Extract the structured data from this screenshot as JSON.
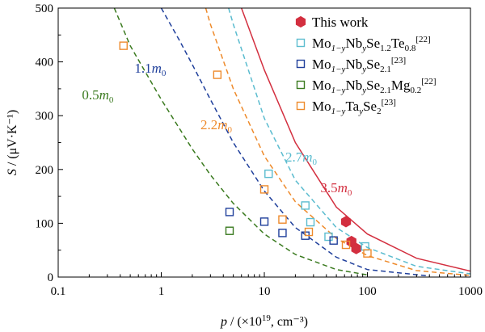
{
  "chart_data": {
    "type": "scatter",
    "xlabel": {
      "pre": "p",
      "mid": " / (×10",
      "sup": "19",
      "post": ", cm⁻³)"
    },
    "ylabel": {
      "pre": "S",
      "post": " / (μV·K⁻¹)"
    },
    "xscale": "log",
    "xlim": [
      0.1,
      1000
    ],
    "ylim": [
      0,
      500
    ],
    "xticks": [
      0.1,
      1,
      10,
      100,
      1000
    ],
    "xtick_labels": [
      "0.1",
      "1",
      "10",
      "100",
      "1000"
    ],
    "yticks": [
      0,
      100,
      200,
      300,
      400,
      500
    ],
    "ytick_labels": [
      "0",
      "100",
      "200",
      "300",
      "400",
      "500"
    ],
    "grid": false,
    "legend_position": "top-right",
    "series": [
      {
        "name": "This work",
        "legend": [
          {
            "t": "This work"
          }
        ],
        "marker": "hexagon",
        "filled": true,
        "color": "#d32f3f",
        "points": [
          [
            62,
            103
          ],
          [
            70,
            66
          ],
          [
            78,
            53
          ]
        ]
      },
      {
        "name": "Mo1-yNbySe1.2Te0.8[22]",
        "legend": [
          {
            "t": "Mo"
          },
          {
            "t": "1−y",
            "s": "sub",
            "i": true
          },
          {
            "t": "Nb"
          },
          {
            "t": "y",
            "s": "sub",
            "i": true
          },
          {
            "t": "Se"
          },
          {
            "t": "1.2",
            "s": "sub"
          },
          {
            "t": "Te"
          },
          {
            "t": "0.8",
            "s": "sub"
          },
          {
            "t": "[22]",
            "s": "sup"
          }
        ],
        "marker": "square",
        "filled": false,
        "color": "#5bbccf",
        "points": [
          [
            11,
            192
          ],
          [
            25,
            133
          ],
          [
            28,
            102
          ],
          [
            42,
            75
          ],
          [
            95,
            57
          ]
        ]
      },
      {
        "name": "Mo1-yNbySe2.1[23]",
        "legend": [
          {
            "t": "Mo"
          },
          {
            "t": "1−y",
            "s": "sub",
            "i": true
          },
          {
            "t": "Nb"
          },
          {
            "t": "y",
            "s": "sub",
            "i": true
          },
          {
            "t": "Se"
          },
          {
            "t": "2.1",
            "s": "sub"
          },
          {
            "t": "[23]",
            "s": "sup"
          }
        ],
        "marker": "square",
        "filled": false,
        "color": "#1f3f9b",
        "points": [
          [
            4.6,
            121
          ],
          [
            10,
            103
          ],
          [
            15,
            82
          ],
          [
            25,
            77
          ],
          [
            47,
            68
          ]
        ]
      },
      {
        "name": "Mo1-yNbySe2.1Mg0.2[22]",
        "legend": [
          {
            "t": "Mo"
          },
          {
            "t": "1−y",
            "s": "sub",
            "i": true
          },
          {
            "t": "Nb"
          },
          {
            "t": "y",
            "s": "sub",
            "i": true
          },
          {
            "t": "Se"
          },
          {
            "t": "2.1",
            "s": "sub"
          },
          {
            "t": "Mg"
          },
          {
            "t": "0.2",
            "s": "sub"
          },
          {
            "t": "[22]",
            "s": "sup"
          }
        ],
        "marker": "square",
        "filled": false,
        "color": "#3a7a1f",
        "points": [
          [
            4.6,
            86
          ]
        ]
      },
      {
        "name": "Mo1-yTaySe2[23]",
        "legend": [
          {
            "t": "Mo"
          },
          {
            "t": "1−y",
            "s": "sub",
            "i": true
          },
          {
            "t": "Ta"
          },
          {
            "t": "y",
            "s": "sub",
            "i": true
          },
          {
            "t": "Se"
          },
          {
            "t": "2",
            "s": "sub"
          },
          {
            "t": "[23]",
            "s": "sup"
          }
        ],
        "marker": "square",
        "filled": false,
        "color": "#ee8a2b",
        "points": [
          [
            0.43,
            430
          ],
          [
            3.5,
            376
          ],
          [
            10,
            163
          ],
          [
            15,
            107
          ],
          [
            27,
            84
          ],
          [
            62,
            60
          ],
          [
            100,
            44
          ]
        ]
      }
    ],
    "curves": [
      {
        "label_num": "0.5",
        "label_sub": "0",
        "color": "#3a7a1f",
        "dashed": true,
        "points": [
          [
            0.35,
            500
          ],
          [
            0.5,
            430
          ],
          [
            1,
            330
          ],
          [
            2,
            238
          ],
          [
            3,
            190
          ],
          [
            5,
            137
          ],
          [
            10,
            80
          ],
          [
            20,
            42
          ],
          [
            50,
            14
          ],
          [
            100,
            4
          ]
        ],
        "label_at": [
          0.17,
          330
        ]
      },
      {
        "label_num": "1.1",
        "label_sub": "0",
        "color": "#1f3f9b",
        "dashed": true,
        "points": [
          [
            1.0,
            500
          ],
          [
            1.5,
            440
          ],
          [
            2,
            395
          ],
          [
            3,
            330
          ],
          [
            5,
            250
          ],
          [
            10,
            160
          ],
          [
            20,
            92
          ],
          [
            50,
            37
          ],
          [
            100,
            14
          ],
          [
            400,
            2
          ]
        ],
        "label_at": [
          0.55,
          380
        ]
      },
      {
        "label_num": "2.2",
        "label_sub": "0",
        "color": "#ee8a2b",
        "dashed": true,
        "points": [
          [
            2.7,
            500
          ],
          [
            3,
            470
          ],
          [
            5,
            350
          ],
          [
            10,
            225
          ],
          [
            20,
            140
          ],
          [
            50,
            72
          ],
          [
            100,
            40
          ],
          [
            300,
            12
          ],
          [
            1000,
            3
          ]
        ],
        "label_at": [
          2.4,
          275
        ]
      },
      {
        "label_num": "2.7",
        "label_sub": "0",
        "color": "#5bbccf",
        "dashed": true,
        "points": [
          [
            4.5,
            500
          ],
          [
            5,
            470
          ],
          [
            10,
            295
          ],
          [
            20,
            180
          ],
          [
            50,
            92
          ],
          [
            100,
            55
          ],
          [
            300,
            20
          ],
          [
            1000,
            6
          ]
        ],
        "label_at": [
          16,
          215
        ]
      },
      {
        "label_num": "3.5",
        "label_sub": "0",
        "color": "#d32f3f",
        "dashed": false,
        "points": [
          [
            6,
            500
          ],
          [
            10,
            385
          ],
          [
            20,
            250
          ],
          [
            50,
            130
          ],
          [
            100,
            80
          ],
          [
            300,
            35
          ],
          [
            1000,
            11
          ]
        ],
        "label_at": [
          35,
          158
        ]
      }
    ]
  }
}
